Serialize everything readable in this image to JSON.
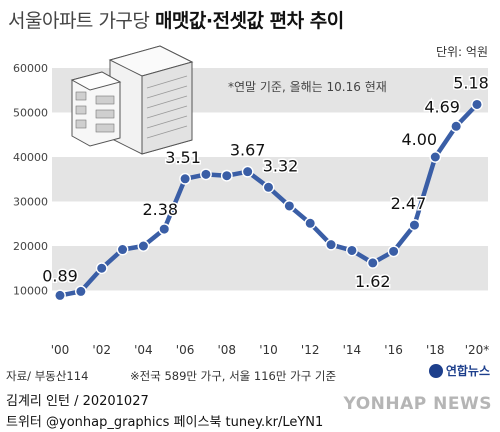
{
  "header": {
    "title_light": "서울아파트 가구당",
    "title_bold": "매맷값·전셋값 편차 추이",
    "unit_label": "단위: 억원"
  },
  "notes": {
    "data_note": "*연말 기준, 올해는 10.16 현재",
    "source": "자료/ 부동산114",
    "footnote": "※전국 589만 가구, 서울 116만 가구 기준"
  },
  "footer": {
    "logo_text": "연합뉴스",
    "credit": "김계리 인턴 / 20201027",
    "social": "트위터 @yonhap_graphics  페이스북 tuney.kr/LeYN1",
    "watermark": "YONHAP NEWS"
  },
  "colors": {
    "line": "#3a5ea6",
    "band": "#e4e4e4",
    "marker": "#3a5ea6"
  },
  "chart_data": {
    "type": "line",
    "title": "서울아파트 가구당 매맷값·전셋값 편차 추이",
    "ylabel": "억원",
    "ylim": [
      0,
      60000
    ],
    "yticks": [
      10000,
      20000,
      30000,
      40000,
      50000,
      60000
    ],
    "ytick_labels": [
      "10000",
      "20000",
      "30000",
      "40000",
      "50000",
      "60000"
    ],
    "xlim": [
      2000,
      2020
    ],
    "xticks": [
      2000,
      2002,
      2004,
      2006,
      2008,
      2010,
      2012,
      2014,
      2016,
      2018,
      2020
    ],
    "xtick_labels": [
      "'00",
      "'02",
      "'04",
      "'06",
      "'08",
      "'10",
      "'12",
      "'14",
      "'16",
      "'18",
      "'20*"
    ],
    "grid": "alternating horizontal bands",
    "series": [
      {
        "x": [
          2000,
          2001,
          2002,
          2003,
          2004,
          2005,
          2006,
          2007,
          2008,
          2009,
          2010,
          2011,
          2012,
          2013,
          2014,
          2015,
          2016,
          2017,
          2018,
          2019,
          2020
        ],
        "y": [
          8900,
          9800,
          15000,
          19200,
          20000,
          23800,
          35100,
          36100,
          35800,
          36700,
          33200,
          29000,
          25100,
          20300,
          19000,
          16200,
          18800,
          24700,
          40000,
          46900,
          51800
        ]
      }
    ],
    "annotations": [
      {
        "x": 2000,
        "y": 8900,
        "text": "0.89"
      },
      {
        "x": 2005,
        "y": 23800,
        "text": "2.38"
      },
      {
        "x": 2006,
        "y": 35100,
        "text": "3.51"
      },
      {
        "x": 2009,
        "y": 36700,
        "text": "3.67"
      },
      {
        "x": 2010,
        "y": 33200,
        "text": "3.32"
      },
      {
        "x": 2015,
        "y": 16200,
        "text": "1.62"
      },
      {
        "x": 2017,
        "y": 24700,
        "text": "2.47"
      },
      {
        "x": 2018,
        "y": 40000,
        "text": "4.00"
      },
      {
        "x": 2019,
        "y": 46900,
        "text": "4.69"
      },
      {
        "x": 2020,
        "y": 51800,
        "text": "5.18"
      }
    ]
  }
}
